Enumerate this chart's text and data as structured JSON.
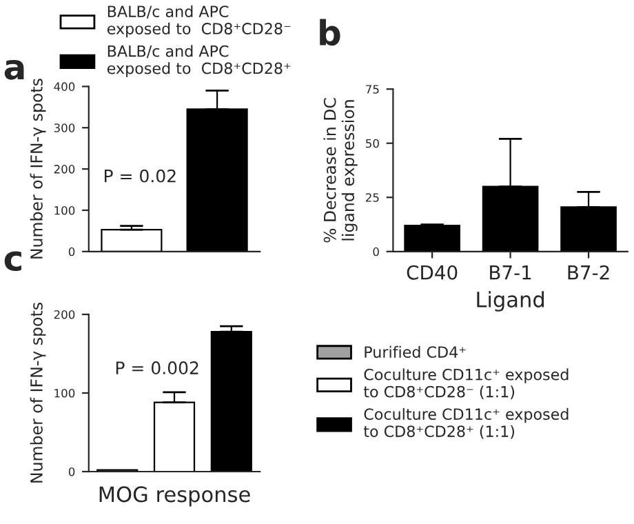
{
  "chart_data": [
    {
      "type": "bar",
      "title": "a",
      "ylabel": "Number of IFN-γ spots",
      "categories": [
        null,
        null
      ],
      "ylim": [
        0,
        400
      ],
      "yticks": [
        0,
        100,
        200,
        300,
        400
      ],
      "legend": "top",
      "annotations": [
        "P = 0.02"
      ],
      "series": [
        {
          "name": "BALB/c and APC\nexposed to  CD8⁺CD28⁻",
          "color": "#ffffff",
          "values": [
            53,
            null
          ],
          "errors": [
            [
              53,
              62
            ],
            null
          ]
        },
        {
          "name": "BALB/c and APC\nexposed to  CD8⁺CD28⁺",
          "color": "#000000",
          "values": [
            null,
            345
          ],
          "errors": [
            null,
            [
              345,
              390
            ]
          ]
        }
      ]
    },
    {
      "type": "bar",
      "title": "b",
      "ylabel": "% Decrease in DC\nligand expression",
      "xlabel": "Ligand",
      "categories": [
        "CD40",
        "B7-1",
        "B7-2"
      ],
      "ylim": [
        0,
        75
      ],
      "yticks": [
        0,
        25,
        50,
        75
      ],
      "series": [
        {
          "color": "#000000",
          "values": [
            12,
            30,
            20.5
          ],
          "errors": [
            [
              12,
              12.5
            ],
            [
              30,
              52
            ],
            [
              20.5,
              27.5
            ]
          ]
        }
      ]
    },
    {
      "type": "bar",
      "title": "c",
      "ylabel": "Number of IFN-γ spots",
      "xlabel": "MOG response",
      "categories": [
        null,
        null,
        null
      ],
      "ylim": [
        0,
        200
      ],
      "yticks": [
        0,
        100,
        200
      ],
      "legend": "right",
      "annotations": [
        "P = 0.002"
      ],
      "series": [
        {
          "name": "Purified CD4⁺",
          "color": "#a0a0a0",
          "values": [
            2,
            null,
            null
          ]
        },
        {
          "name": "Coculture CD11c⁺ exposed\nto CD8⁺CD28⁻ (1:1)",
          "color": "#ffffff",
          "values": [
            null,
            88,
            null
          ],
          "errors": [
            null,
            [
              88,
              101
            ],
            null
          ]
        },
        {
          "name": "Coculture CD11c⁺ exposed\nto CD8⁺CD28⁺ (1:1)",
          "color": "#000000",
          "values": [
            null,
            null,
            178
          ],
          "errors": [
            null,
            null,
            [
              178,
              185
            ]
          ]
        }
      ]
    }
  ]
}
